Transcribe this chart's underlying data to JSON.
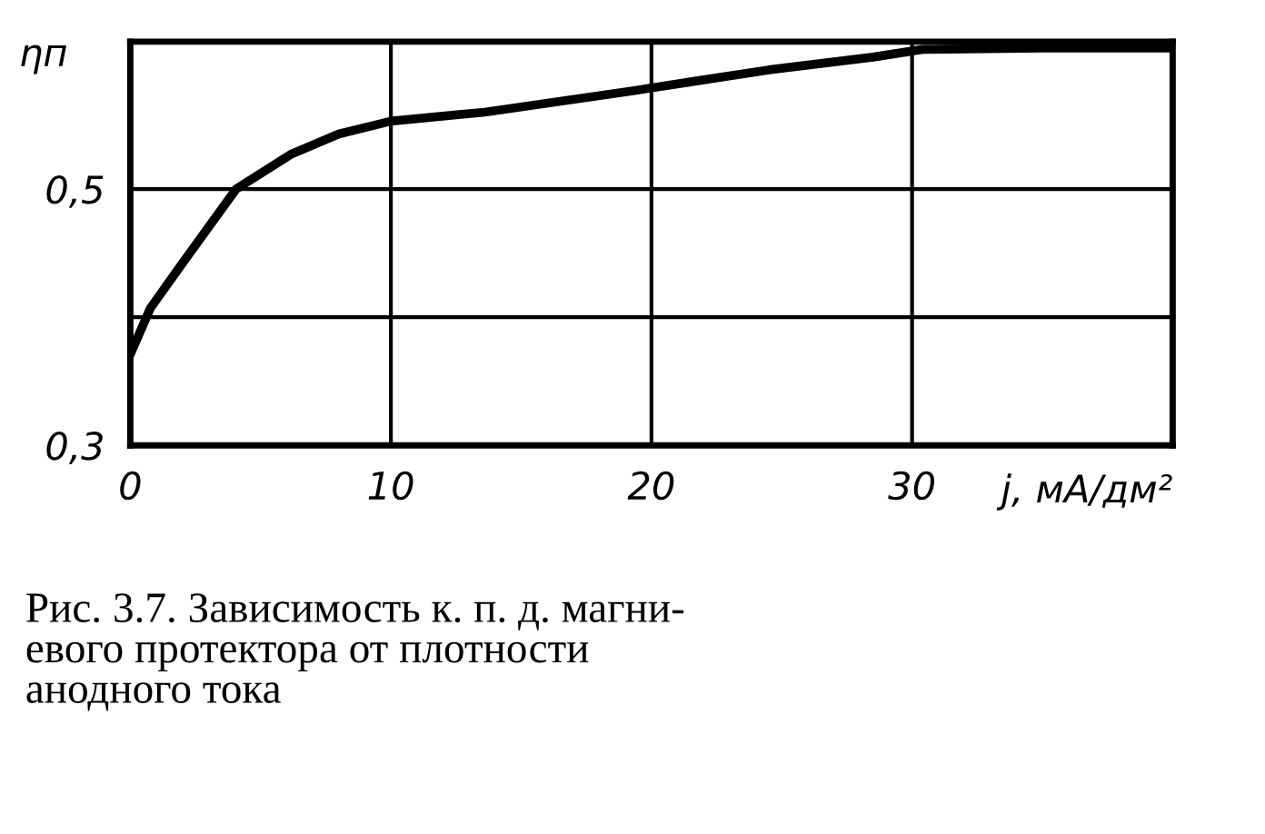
{
  "chart_data": {
    "type": "line",
    "xlabel": "j, мА/дм²",
    "ylabel": "ηп",
    "x": [
      0,
      0.77,
      1.96,
      4.06,
      6.15,
      8.0,
      10,
      13.6,
      19.4,
      20,
      24.5,
      28.5,
      30.4,
      35,
      39.9
    ],
    "series": [
      {
        "color": "#000000",
        "values": [
          0.371,
          0.407,
          0.441,
          0.5,
          0.527,
          0.543,
          0.553,
          0.56,
          0.577,
          0.579,
          0.593,
          0.603,
          0.609,
          0.61,
          0.61
        ]
      }
    ],
    "xlim": [
      0,
      40
    ],
    "ylim": [
      0.3,
      0.615
    ],
    "xticks": [
      0,
      10,
      20,
      30
    ],
    "yticks": [
      {
        "value": 0.3,
        "label": "0,3"
      },
      {
        "value": 0.4,
        "label": null
      },
      {
        "value": 0.5,
        "label": "0,5"
      }
    ],
    "grid": true,
    "marker": "none",
    "line_style": "solid",
    "legend": false,
    "annotations": [
      "Рис. 3.7. Зависимость к. п. д. магни-\nевого протектора от плотности\nанодного тока"
    ]
  }
}
